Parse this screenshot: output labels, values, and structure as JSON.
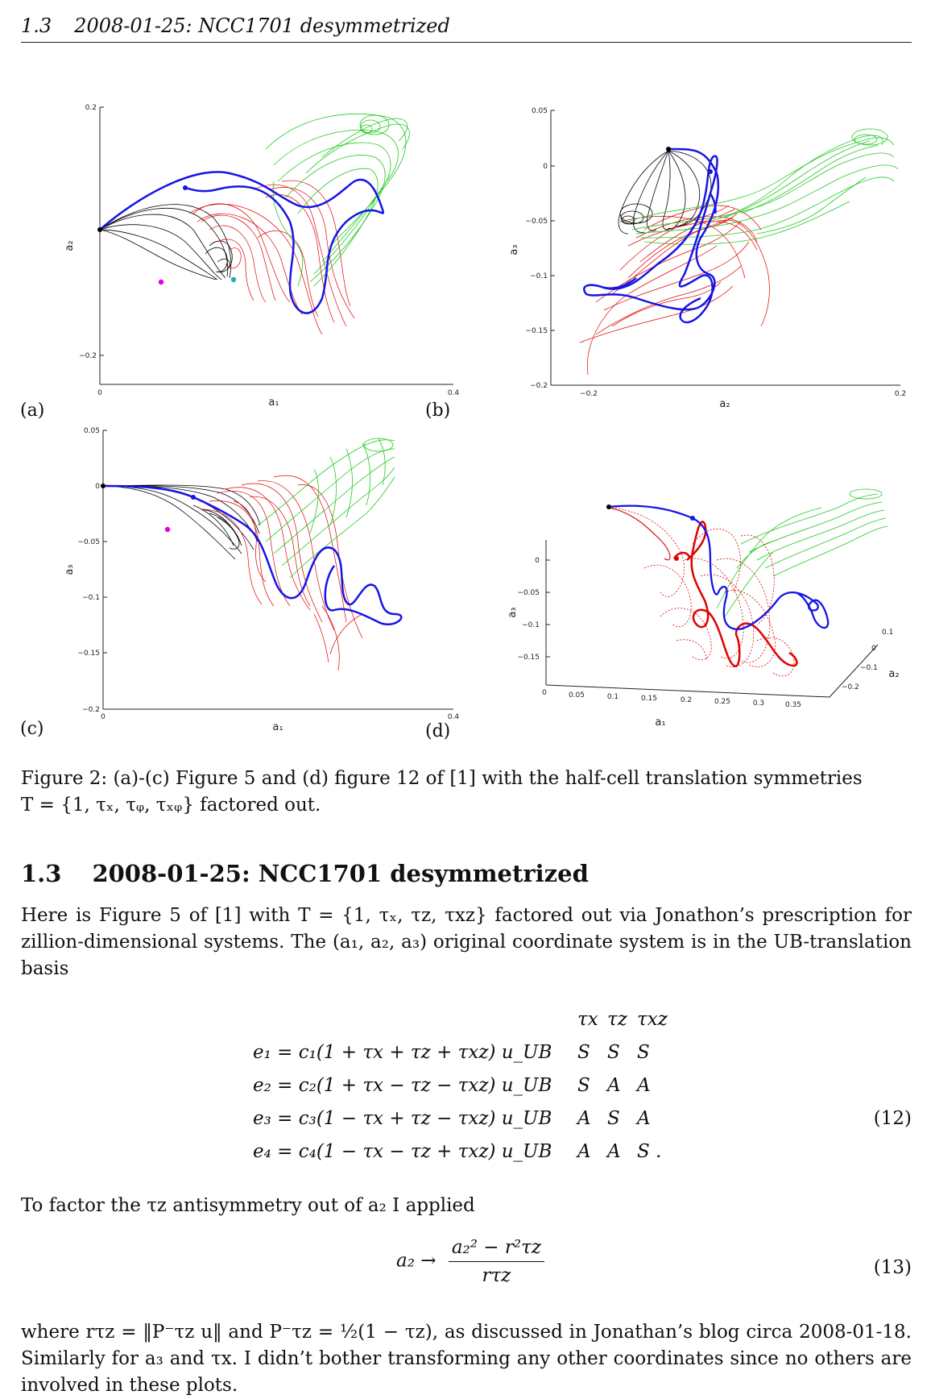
{
  "running_head": {
    "number": "1.3",
    "title": "2008-01-25: NCC1701 desymmetrized"
  },
  "colors": {
    "black": "#000000",
    "red": "#e00000",
    "green": "#22c922",
    "blue": "#1515e6",
    "magenta": "#e000e0",
    "cyan": "#20b0b0"
  },
  "panels": [
    {
      "label": "(a)",
      "xlabel": "a₁",
      "ylabel": "a₂",
      "xticks": [
        "0",
        "0.4"
      ],
      "yticks": [
        "0.2",
        "−0.2"
      ]
    },
    {
      "label": "(b)",
      "xlabel": "a₂",
      "ylabel": "a₃",
      "xticks": [
        "−0.2",
        "0.2"
      ],
      "yticks": [
        "0.05",
        "0",
        "−0.05",
        "−0.1",
        "−0.15",
        "−0.2"
      ]
    },
    {
      "label": "(c)",
      "xlabel": "a₁",
      "ylabel": "a₃",
      "xticks": [
        "0",
        "0.4"
      ],
      "yticks": [
        "0.05",
        "0",
        "−0.05",
        "−0.1",
        "−0.15",
        "−0.2"
      ]
    },
    {
      "label": "(d)",
      "xlabel": "a₁",
      "ylabel": "a₃",
      "zlabel": "a₂",
      "xticks": [
        "0",
        "0.05",
        "0.1",
        "0.15",
        "0.2",
        "0.25",
        "0.3",
        "0.35"
      ],
      "yticks": [
        "0",
        "−0.05",
        "−0.1",
        "−0.15"
      ],
      "zticks": [
        "0.1",
        "0",
        "−0.1",
        "−0.2"
      ]
    }
  ],
  "caption": {
    "line1": "Figure 2:  (a)-(c) Figure 5 and (d) figure 12 of [1] with the half-cell translation symmetries",
    "line2": "T = {1, τₓ, τᵩ, τₓᵩ} factored out."
  },
  "section": {
    "number": "1.3",
    "title": "2008-01-25: NCC1701 desymmetrized"
  },
  "para1": "Here is Figure 5 of [1] with T = {1, τₓ, τz, τxz} factored out via Jonathon’s prescription for zillion-dimensional systems. The (a₁, a₂, a₃) original coordinate system is in the UB-translation basis",
  "equations": {
    "header": [
      "τx",
      "τz",
      "τxz"
    ],
    "rows": [
      {
        "lhs": "e₁ = c₁(1 + τx + τz + τxz) u_UB",
        "sym": [
          "S",
          "S",
          "S"
        ]
      },
      {
        "lhs": "e₂ = c₂(1 + τx − τz − τxz) u_UB",
        "sym": [
          "S",
          "A",
          "A"
        ]
      },
      {
        "lhs": "e₃ = c₃(1 − τx + τz − τxz) u_UB",
        "sym": [
          "A",
          "S",
          "A"
        ]
      },
      {
        "lhs": "e₄ = c₄(1 − τx − τz + τxz) u_UB",
        "sym": [
          "A",
          "A",
          "S ."
        ]
      }
    ],
    "number": "(12)"
  },
  "para2": "To factor the τz antisymmetry out of a₂ I applied",
  "eq13": {
    "lhs": "a₂ →",
    "numerator": "a₂² − r²τz",
    "denominator": "rτz",
    "number": "(13)"
  },
  "para3": "where rτz = ‖P⁻τz u‖ and P⁻τz = ½(1 − τz), as discussed in Jonathan’s blog circa 2008-01-18. Similarly for a₃ and τx. I didn’t bother transforming any other coordinates since no others are involved in these plots."
}
